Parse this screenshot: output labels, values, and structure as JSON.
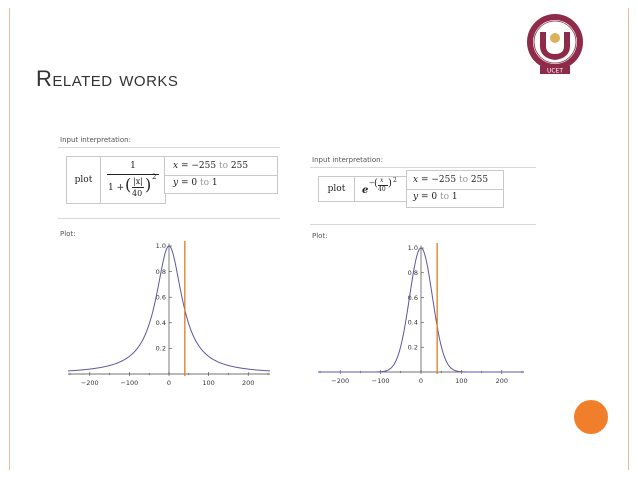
{
  "slide": {
    "title": "Related works",
    "accent_color": "#f07e2a",
    "border_color": "#e9b9a0",
    "logo_caption": "UCET"
  },
  "left_panel": {
    "input_label": "Input interpretation:",
    "plot_word": "plot",
    "numerator": "1",
    "denominator_prefix": "1 +",
    "abs_x": "|x|",
    "inner_den": "40",
    "exponent": "2",
    "x_var": "x",
    "x_from": "−255",
    "x_to": "255",
    "y_var": "y",
    "y_from": "0",
    "y_to": "1",
    "to_word": "to",
    "plot_label": "Plot:"
  },
  "right_panel": {
    "input_label": "Input interpretation:",
    "plot_word": "plot",
    "base": "e",
    "minus": "−",
    "frac_num": "x",
    "frac_den": "40",
    "exponent": "2",
    "x_var": "x",
    "x_from": "−255",
    "x_to": "255",
    "y_var": "y",
    "y_from": "0",
    "y_to": "1",
    "to_word": "to",
    "plot_label": "Plot:"
  },
  "chart_data": [
    {
      "type": "line",
      "function": "1/(1+(|x|/40)^2)",
      "xlim": [
        -255,
        255
      ],
      "ylim": [
        0,
        1
      ],
      "x_ticks": [
        -200,
        -100,
        0,
        100,
        200
      ],
      "x_tick_labels": [
        "−200",
        "−100",
        "0",
        "100",
        "200"
      ],
      "y_ticks": [
        0.2,
        0.4,
        0.6,
        0.8,
        1.0
      ],
      "y_tick_labels": [
        "0.2",
        "0.4",
        "0.6",
        "0.8",
        "1.0"
      ],
      "curve_color": "#5b57a3",
      "marker_x": 40,
      "marker_color": "#e07b1d"
    },
    {
      "type": "line",
      "function": "e^(-(x/40)^2)",
      "xlim": [
        -255,
        255
      ],
      "ylim": [
        0,
        1
      ],
      "x_ticks": [
        -200,
        -100,
        0,
        100,
        200
      ],
      "x_tick_labels": [
        "−200",
        "−100",
        "0",
        "100",
        "200"
      ],
      "y_ticks": [
        0.2,
        0.4,
        0.6,
        0.8,
        1.0
      ],
      "y_tick_labels": [
        "0.2",
        "0.4",
        "0.6",
        "0.8",
        "1.0"
      ],
      "curve_color": "#5b57a3",
      "marker_x": 40,
      "marker_color": "#e07b1d"
    }
  ]
}
